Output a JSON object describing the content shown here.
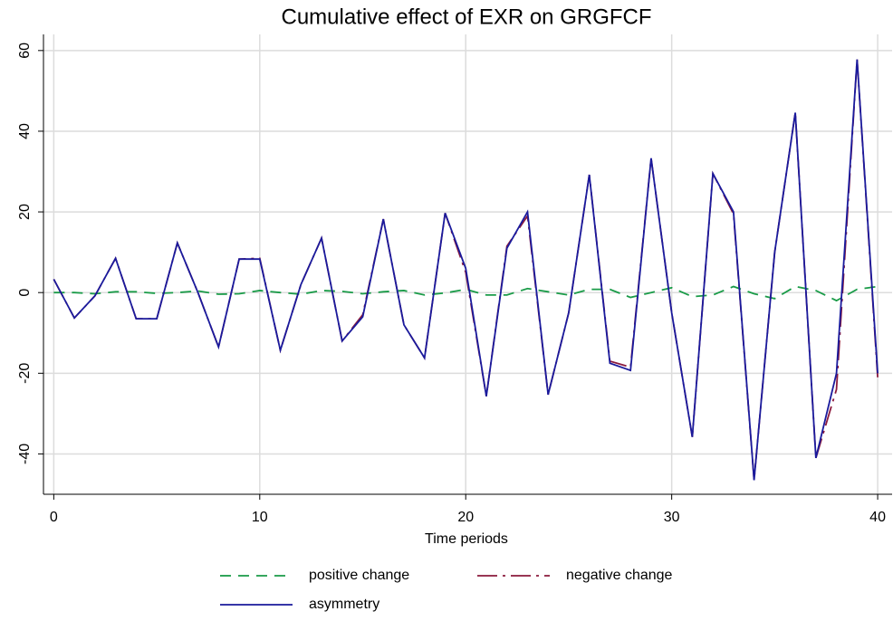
{
  "chart_data": {
    "type": "line",
    "title": "Cumulative effect of EXR on GRGFCF",
    "x_label": "Time periods",
    "x": [
      0,
      1,
      2,
      3,
      4,
      5,
      6,
      7,
      8,
      9,
      10,
      11,
      12,
      13,
      14,
      15,
      16,
      17,
      18,
      19,
      20,
      21,
      22,
      23,
      24,
      25,
      26,
      27,
      28,
      29,
      30,
      31,
      32,
      33,
      34,
      35,
      36,
      37,
      38,
      39,
      40
    ],
    "series": [
      {
        "name": "positive change",
        "color": "#1a9b48",
        "linestyle": "dash",
        "values": [
          0,
          0,
          -0.3,
          0.2,
          0.2,
          -0.2,
          0,
          0.4,
          -0.4,
          -0.3,
          0.5,
          0,
          -0.4,
          0.5,
          0.3,
          -0.3,
          0.2,
          0.5,
          -0.6,
          -0.1,
          0.8,
          -0.6,
          -0.6,
          1,
          0.2,
          -0.6,
          0.8,
          0.8,
          -1.2,
          0,
          1.2,
          -1,
          -0.6,
          1.5,
          -0.3,
          -1.5,
          1.5,
          0.5,
          -2,
          0.8,
          1.5
        ]
      },
      {
        "name": "negative change",
        "color": "#8b1a3d",
        "linestyle": "longdashdot",
        "values": [
          3.3,
          -6.3,
          -0.8,
          8.5,
          -6.5,
          -6.5,
          12.3,
          0,
          -13.5,
          8.3,
          8.5,
          -14.3,
          2,
          13.5,
          -12,
          -5.5,
          18.2,
          -8,
          -16.2,
          19.7,
          5,
          -25.7,
          11.5,
          19,
          -25.3,
          -5,
          29.2,
          -17,
          -18.5,
          33.3,
          -5,
          -35.8,
          29.5,
          19.5,
          -46.5,
          10,
          44.6,
          -41,
          -24,
          57.8,
          -21
        ]
      },
      {
        "name": "asymmetry",
        "color": "#1a1a9c",
        "linestyle": "solid",
        "values": [
          3.3,
          -6.3,
          -0.8,
          8.5,
          -6.5,
          -6.5,
          12.3,
          0,
          -13.5,
          8.3,
          8.3,
          -14.3,
          2,
          13.5,
          -12,
          -6,
          18.2,
          -8,
          -16.2,
          19.7,
          6,
          -25.7,
          11,
          20,
          -25.3,
          -5,
          29.2,
          -17.5,
          -19.3,
          33.3,
          -5,
          -35.8,
          29.5,
          20,
          -46.5,
          10,
          44.6,
          -41,
          -20,
          57.8,
          -20
        ]
      }
    ],
    "xlim": [
      -0.5,
      40.7
    ],
    "ylim": [
      -50,
      64
    ],
    "xticks": [
      0,
      10,
      20,
      30,
      40
    ],
    "yticks": [
      -40,
      -20,
      0,
      20,
      40,
      60
    ],
    "grid": true,
    "legend": "bottom"
  }
}
